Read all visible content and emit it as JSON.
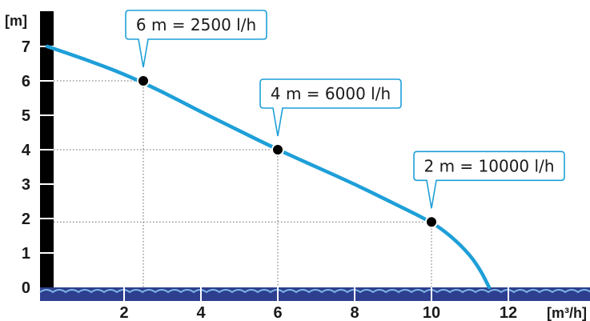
{
  "chart_data": {
    "type": "line",
    "title": "",
    "xlabel": "[m³/h]",
    "ylabel": "[m]",
    "xlim": [
      0,
      13.5
    ],
    "ylim": [
      0,
      7.5
    ],
    "x_ticks": [
      2,
      4,
      6,
      8,
      10,
      12
    ],
    "y_ticks": [
      0,
      1,
      2,
      3,
      4,
      5,
      6,
      7
    ],
    "grid": false,
    "series": [
      {
        "color": "#1E9FD8",
        "x": [
          0,
          1,
          2,
          3,
          4,
          5,
          6,
          7,
          8,
          9,
          10,
          10.5,
          11,
          11.3,
          11.5
        ],
        "y": [
          7.0,
          6.62,
          6.2,
          5.68,
          5.1,
          4.55,
          4.0,
          3.5,
          3.0,
          2.45,
          1.9,
          1.5,
          0.95,
          0.45,
          0.0
        ]
      }
    ],
    "points": [
      {
        "x": 2.5,
        "y": 6,
        "label": "6 m = 2500 l/h"
      },
      {
        "x": 6,
        "y": 4,
        "label": "4 m = 6000 l/h"
      },
      {
        "x": 10,
        "y": 1.9,
        "label": "2 m = 10000 l/h"
      }
    ],
    "colors": {
      "curve": "#1E9FD8",
      "callout_border": "#1E9FD8",
      "y_axis_bar": "#000000",
      "water": "#2E3F8F",
      "dots": "#000000",
      "guides": "#666666"
    }
  }
}
